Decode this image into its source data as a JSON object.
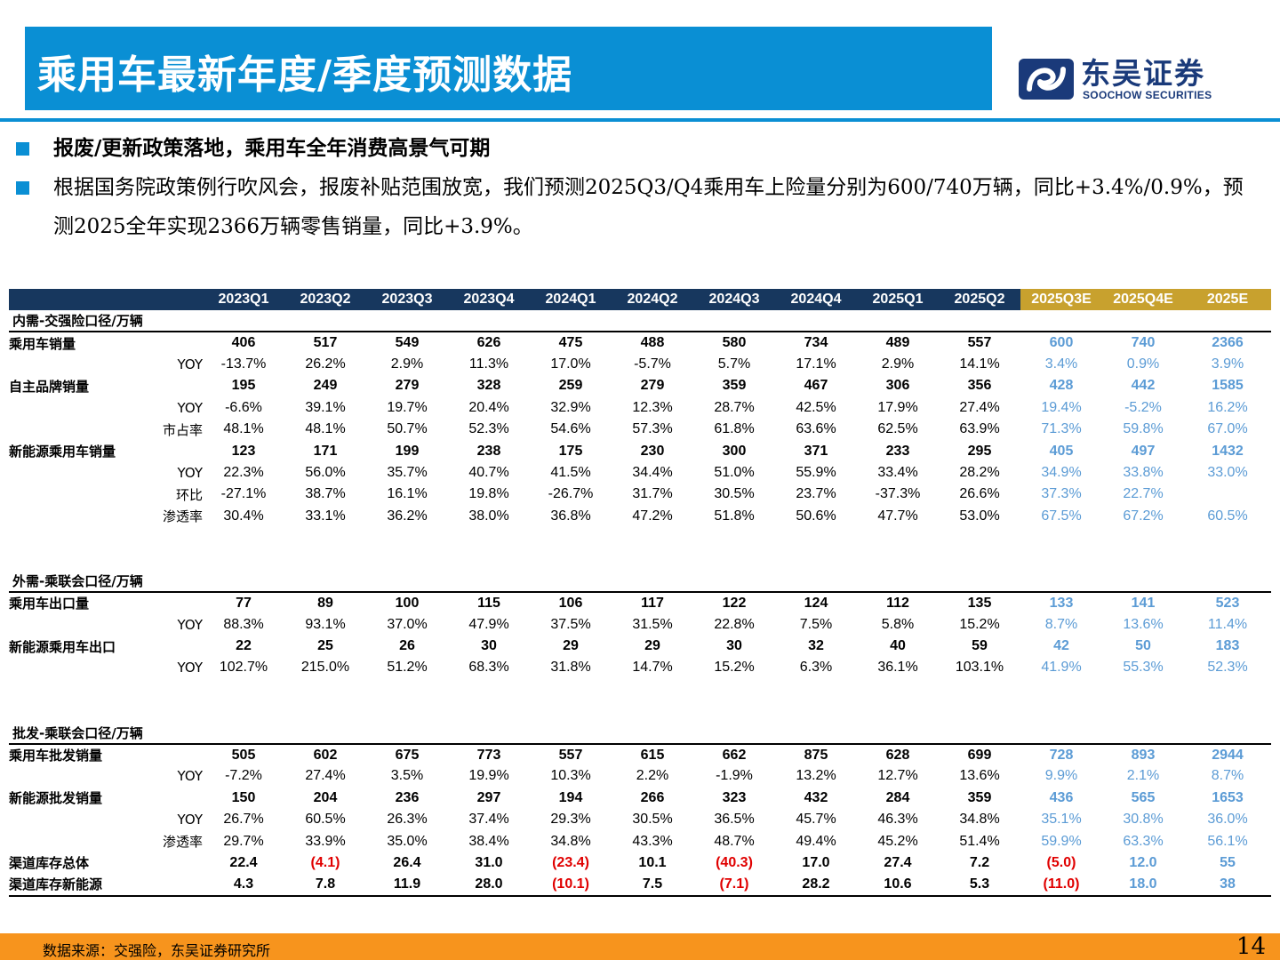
{
  "header": {
    "title": "乘用车最新年度/季度预测数据",
    "logo_cn": "东吴证券",
    "logo_en": "SOOCHOW SECURITIES"
  },
  "bullets": [
    "报废/更新政策落地，乘用车全年消费高景气可期",
    "根据国务院政策例行吹风会，报废补贴范围放宽，我们预测2025Q3/Q4乘用车上险量分别为600/740万辆，同比+3.4%/0.9%，预测2025全年实现2366万辆零售销量，同比+3.9%。"
  ],
  "table": {
    "columns": [
      "2023Q1",
      "2023Q2",
      "2023Q3",
      "2023Q4",
      "2024Q1",
      "2024Q2",
      "2024Q3",
      "2024Q4",
      "2025Q1",
      "2025Q2",
      "2025Q3E",
      "2025Q4E",
      "2025E"
    ],
    "estimate_columns": [
      10,
      11,
      12
    ],
    "sections": [
      {
        "title": "内需-交强险口径/万辆",
        "rows": [
          {
            "label": "乘用车销量",
            "sub": "",
            "bold": true,
            "values": [
              "406",
              "517",
              "549",
              "626",
              "475",
              "488",
              "580",
              "734",
              "489",
              "557",
              "600",
              "740",
              "2366"
            ]
          },
          {
            "label": "",
            "sub": "YOY",
            "bold": false,
            "values": [
              "-13.7%",
              "26.2%",
              "2.9%",
              "11.3%",
              "17.0%",
              "-5.7%",
              "5.7%",
              "17.1%",
              "2.9%",
              "14.1%",
              "3.4%",
              "0.9%",
              "3.9%"
            ]
          },
          {
            "label": "自主品牌销量",
            "sub": "",
            "bold": true,
            "values": [
              "195",
              "249",
              "279",
              "328",
              "259",
              "279",
              "359",
              "467",
              "306",
              "356",
              "428",
              "442",
              "1585"
            ]
          },
          {
            "label": "",
            "sub": "YOY",
            "bold": false,
            "values": [
              "-6.6%",
              "39.1%",
              "19.7%",
              "20.4%",
              "32.9%",
              "12.3%",
              "28.7%",
              "42.5%",
              "17.9%",
              "27.4%",
              "19.4%",
              "-5.2%",
              "16.2%"
            ]
          },
          {
            "label": "",
            "sub": "市占率",
            "bold": false,
            "values": [
              "48.1%",
              "48.1%",
              "50.7%",
              "52.3%",
              "54.6%",
              "57.3%",
              "61.8%",
              "63.6%",
              "62.5%",
              "63.9%",
              "71.3%",
              "59.8%",
              "67.0%"
            ]
          },
          {
            "label": "新能源乘用车销量",
            "sub": "",
            "bold": true,
            "values": [
              "123",
              "171",
              "199",
              "238",
              "175",
              "230",
              "300",
              "371",
              "233",
              "295",
              "405",
              "497",
              "1432"
            ]
          },
          {
            "label": "",
            "sub": "YOY",
            "bold": false,
            "values": [
              "22.3%",
              "56.0%",
              "35.7%",
              "40.7%",
              "41.5%",
              "34.4%",
              "51.0%",
              "55.9%",
              "33.4%",
              "28.2%",
              "34.9%",
              "33.8%",
              "33.0%"
            ]
          },
          {
            "label": "",
            "sub": "环比",
            "bold": false,
            "values": [
              "-27.1%",
              "38.7%",
              "16.1%",
              "19.8%",
              "-26.7%",
              "31.7%",
              "30.5%",
              "23.7%",
              "-37.3%",
              "26.6%",
              "37.3%",
              "22.7%",
              ""
            ]
          },
          {
            "label": "",
            "sub": "渗透率",
            "bold": false,
            "values": [
              "30.4%",
              "33.1%",
              "36.2%",
              "38.0%",
              "36.8%",
              "47.2%",
              "51.8%",
              "50.6%",
              "47.7%",
              "53.0%",
              "67.5%",
              "67.2%",
              "60.5%"
            ]
          }
        ]
      },
      {
        "title": "外需-乘联会口径/万辆",
        "rows": [
          {
            "label": "乘用车出口量",
            "sub": "",
            "bold": true,
            "values": [
              "77",
              "89",
              "100",
              "115",
              "106",
              "117",
              "122",
              "124",
              "112",
              "135",
              "133",
              "141",
              "523"
            ]
          },
          {
            "label": "",
            "sub": "YOY",
            "bold": false,
            "values": [
              "88.3%",
              "93.1%",
              "37.0%",
              "47.9%",
              "37.5%",
              "31.5%",
              "22.8%",
              "7.5%",
              "5.8%",
              "15.2%",
              "8.7%",
              "13.6%",
              "11.4%"
            ]
          },
          {
            "label": "新能源乘用车出口",
            "sub": "",
            "bold": true,
            "values": [
              "22",
              "25",
              "26",
              "30",
              "29",
              "29",
              "30",
              "32",
              "40",
              "59",
              "42",
              "50",
              "183"
            ]
          },
          {
            "label": "",
            "sub": "YOY",
            "bold": false,
            "values": [
              "102.7%",
              "215.0%",
              "51.2%",
              "68.3%",
              "31.8%",
              "14.7%",
              "15.2%",
              "6.3%",
              "36.1%",
              "103.1%",
              "41.9%",
              "55.3%",
              "52.3%"
            ]
          }
        ]
      },
      {
        "title": "批发-乘联会口径/万辆",
        "rows": [
          {
            "label": "乘用车批发销量",
            "sub": "",
            "bold": true,
            "values": [
              "505",
              "602",
              "675",
              "773",
              "557",
              "615",
              "662",
              "875",
              "628",
              "699",
              "728",
              "893",
              "2944"
            ]
          },
          {
            "label": "",
            "sub": "YOY",
            "bold": false,
            "values": [
              "-7.2%",
              "27.4%",
              "3.5%",
              "19.9%",
              "10.3%",
              "2.2%",
              "-1.9%",
              "13.2%",
              "12.7%",
              "13.6%",
              "9.9%",
              "2.1%",
              "8.7%"
            ]
          },
          {
            "label": "新能源批发销量",
            "sub": "",
            "bold": true,
            "values": [
              "150",
              "204",
              "236",
              "297",
              "194",
              "266",
              "323",
              "432",
              "284",
              "359",
              "436",
              "565",
              "1653"
            ]
          },
          {
            "label": "",
            "sub": "YOY",
            "bold": false,
            "values": [
              "26.7%",
              "60.5%",
              "26.3%",
              "37.4%",
              "29.3%",
              "30.5%",
              "36.5%",
              "45.7%",
              "46.3%",
              "34.8%",
              "35.1%",
              "30.8%",
              "36.0%"
            ]
          },
          {
            "label": "",
            "sub": "渗透率",
            "bold": false,
            "values": [
              "29.7%",
              "33.9%",
              "35.0%",
              "38.4%",
              "34.8%",
              "43.3%",
              "48.7%",
              "49.4%",
              "45.2%",
              "51.4%",
              "59.9%",
              "63.3%",
              "56.1%"
            ]
          },
          {
            "label": "渠道库存总体",
            "sub": "",
            "bold": true,
            "values": [
              "22.4",
              "(4.1)",
              "26.4",
              "31.0",
              "(23.4)",
              "10.1",
              "(40.3)",
              "17.0",
              "27.4",
              "7.2",
              "(5.0)",
              "12.0",
              "55"
            ]
          },
          {
            "label": "渠道库存新能源",
            "sub": "",
            "bold": true,
            "values": [
              "4.3",
              "7.8",
              "11.9",
              "28.0",
              "(10.1)",
              "7.5",
              "(7.1)",
              "28.2",
              "10.6",
              "5.3",
              "(11.0)",
              "18.0",
              "38"
            ]
          }
        ]
      }
    ]
  },
  "footer": {
    "source": "数据来源：交强险，东吴证券研究所",
    "page": "14"
  },
  "colors": {
    "brand_blue": "#0a8fd4",
    "header_navy": "#17375e",
    "estimate_gold": "#c8a12e",
    "forecast_text": "#5b9bd5",
    "negative_red": "#e00000",
    "footer_orange": "#f7941d"
  }
}
